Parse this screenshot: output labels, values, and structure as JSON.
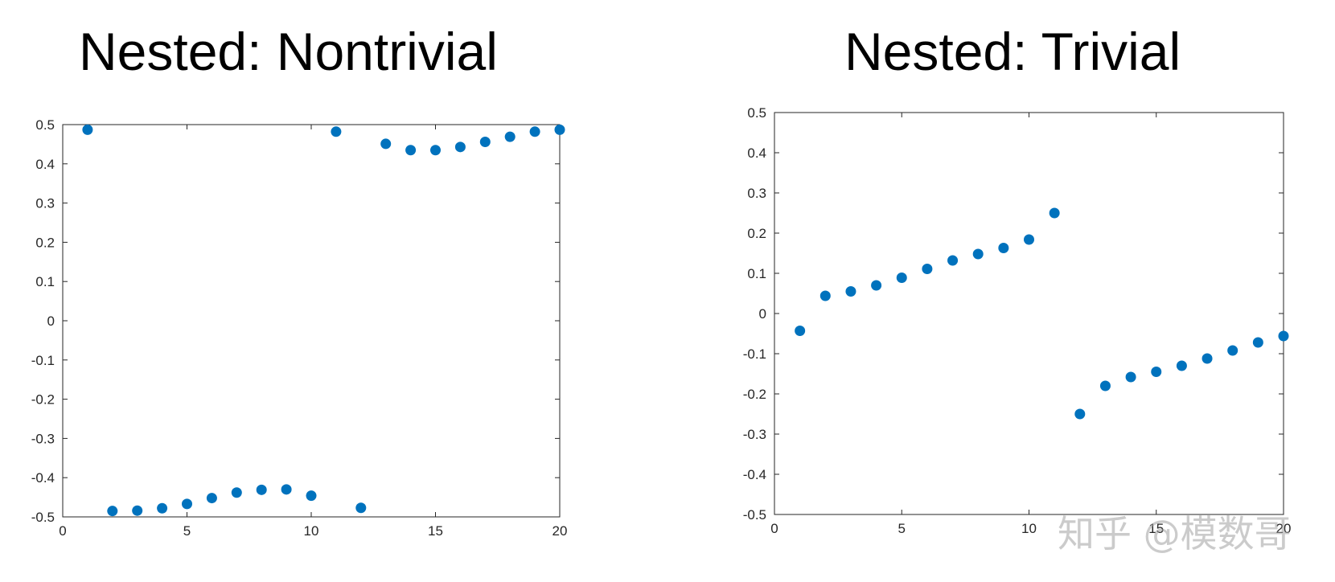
{
  "chart_data": [
    {
      "type": "scatter",
      "title": "Nested: Nontrivial",
      "xlim": [
        0,
        20
      ],
      "ylim": [
        -0.5,
        0.5
      ],
      "xticks": [
        0,
        5,
        10,
        15,
        20
      ],
      "yticks": [
        0.5,
        0.4,
        0.3,
        0.2,
        0.1,
        0,
        -0.1,
        -0.2,
        -0.3,
        -0.4,
        -0.5
      ],
      "xtick_labels": [
        "0",
        "5",
        "10",
        "15",
        "20"
      ],
      "ytick_labels": [
        "0.5",
        "0.4",
        "0.3",
        "0.2",
        "0.1",
        "0",
        "-0.1",
        "-0.2",
        "-0.3",
        "-0.4",
        "-0.5"
      ],
      "color": "#0072bd",
      "x": [
        1,
        2,
        3,
        4,
        5,
        6,
        7,
        8,
        9,
        10,
        11,
        12,
        13,
        14,
        15,
        16,
        17,
        18,
        19,
        20
      ],
      "y": [
        0.487,
        -0.485,
        -0.484,
        -0.478,
        -0.467,
        -0.452,
        -0.438,
        -0.431,
        -0.43,
        -0.446,
        0.482,
        -0.477,
        0.451,
        0.435,
        0.435,
        0.443,
        0.456,
        0.469,
        0.482,
        0.487
      ]
    },
    {
      "type": "scatter",
      "title": "Nested: Trivial",
      "xlim": [
        0,
        20
      ],
      "ylim": [
        -0.5,
        0.5
      ],
      "xticks": [
        0,
        5,
        10,
        15,
        20
      ],
      "yticks": [
        0.5,
        0.4,
        0.3,
        0.2,
        0.1,
        0,
        -0.1,
        -0.2,
        -0.3,
        -0.4,
        -0.5
      ],
      "xtick_labels": [
        "0",
        "5",
        "10",
        "15",
        "20"
      ],
      "ytick_labels": [
        "0.5",
        "0.4",
        "0.3",
        "0.2",
        "0.1",
        "0",
        "-0.1",
        "-0.2",
        "-0.3",
        "-0.4",
        "-0.5"
      ],
      "color": "#0072bd",
      "x": [
        1,
        2,
        3,
        4,
        5,
        6,
        7,
        8,
        9,
        10,
        11,
        12,
        13,
        14,
        15,
        16,
        17,
        18,
        19,
        20
      ],
      "y": [
        -0.043,
        0.044,
        0.055,
        0.07,
        0.089,
        0.111,
        0.132,
        0.148,
        0.163,
        0.184,
        0.25,
        -0.25,
        -0.18,
        -0.158,
        -0.145,
        -0.13,
        -0.112,
        -0.092,
        -0.072,
        -0.056
      ]
    }
  ],
  "watermark": "知乎 @模数哥"
}
